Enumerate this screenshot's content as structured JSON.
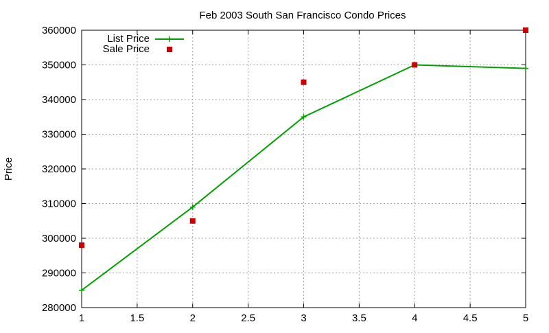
{
  "chart_data": {
    "type": "line",
    "title": "Feb 2003 South San Francisco Condo Prices",
    "xlabel": "",
    "ylabel": "Price",
    "xlim": [
      1,
      5
    ],
    "ylim": [
      280000,
      360000
    ],
    "x_ticks": [
      1,
      1.5,
      2,
      2.5,
      3,
      3.5,
      4,
      4.5,
      5
    ],
    "x_tick_labels": [
      "1",
      "1.5",
      "2",
      "2.5",
      "3",
      "3.5",
      "4",
      "4.5",
      "5"
    ],
    "y_ticks": [
      280000,
      290000,
      300000,
      310000,
      320000,
      330000,
      340000,
      350000,
      360000
    ],
    "y_tick_labels": [
      "280000",
      "290000",
      "300000",
      "310000",
      "320000",
      "330000",
      "340000",
      "350000",
      "360000"
    ],
    "grid": true,
    "legend_position": "top-left",
    "series": [
      {
        "name": "List Price",
        "style": "line with plus markers",
        "color": "#00a000",
        "points": [
          [
            1,
            285000
          ],
          [
            2,
            309000
          ],
          [
            3,
            335000
          ],
          [
            4,
            350000
          ],
          [
            5,
            349000
          ]
        ]
      },
      {
        "name": "Sale Price",
        "style": "square markers",
        "color": "#cc0000",
        "points": [
          [
            1,
            298000
          ],
          [
            2,
            305000
          ],
          [
            3,
            345000
          ],
          [
            4,
            350000
          ],
          [
            5,
            360000
          ]
        ]
      }
    ]
  }
}
